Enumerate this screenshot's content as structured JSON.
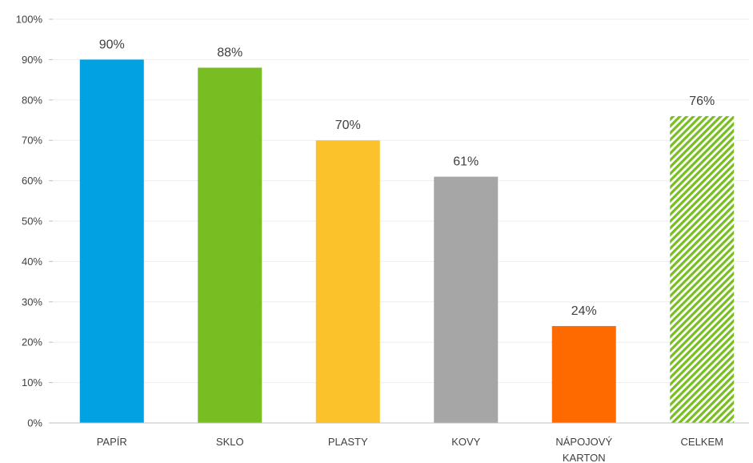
{
  "chart_data": {
    "type": "bar",
    "categories": [
      "PAPÍR",
      "SKLO",
      "PLASTY",
      "KOVY",
      "NÁPOJOVÝ KARTON",
      "CELKEM"
    ],
    "category_lines": [
      [
        "PAPÍR"
      ],
      [
        "SKLO"
      ],
      [
        "PLASTY"
      ],
      [
        "KOVY"
      ],
      [
        "NÁPOJOVÝ",
        "KARTON"
      ],
      [
        "CELKEM"
      ]
    ],
    "values": [
      90,
      88,
      70,
      61,
      24,
      76
    ],
    "data_labels": [
      "90%",
      "88%",
      "70%",
      "61%",
      "24%",
      "76%"
    ],
    "bar_colors": [
      "#00a2e0",
      "#78bd21",
      "#fcc22b",
      "#a6a6a6",
      "#ff6a00",
      "#78bd21"
    ],
    "bar_patterns": [
      "solid",
      "solid",
      "solid",
      "solid",
      "solid",
      "diagonal-hatch"
    ],
    "y_ticks": [
      0,
      10,
      20,
      30,
      40,
      50,
      60,
      70,
      80,
      90,
      100
    ],
    "y_tick_labels": [
      "0%",
      "10%",
      "20%",
      "30%",
      "40%",
      "50%",
      "60%",
      "70%",
      "80%",
      "90%",
      "100%"
    ],
    "ylim": [
      0,
      100
    ],
    "grid": true,
    "legend": "none"
  }
}
